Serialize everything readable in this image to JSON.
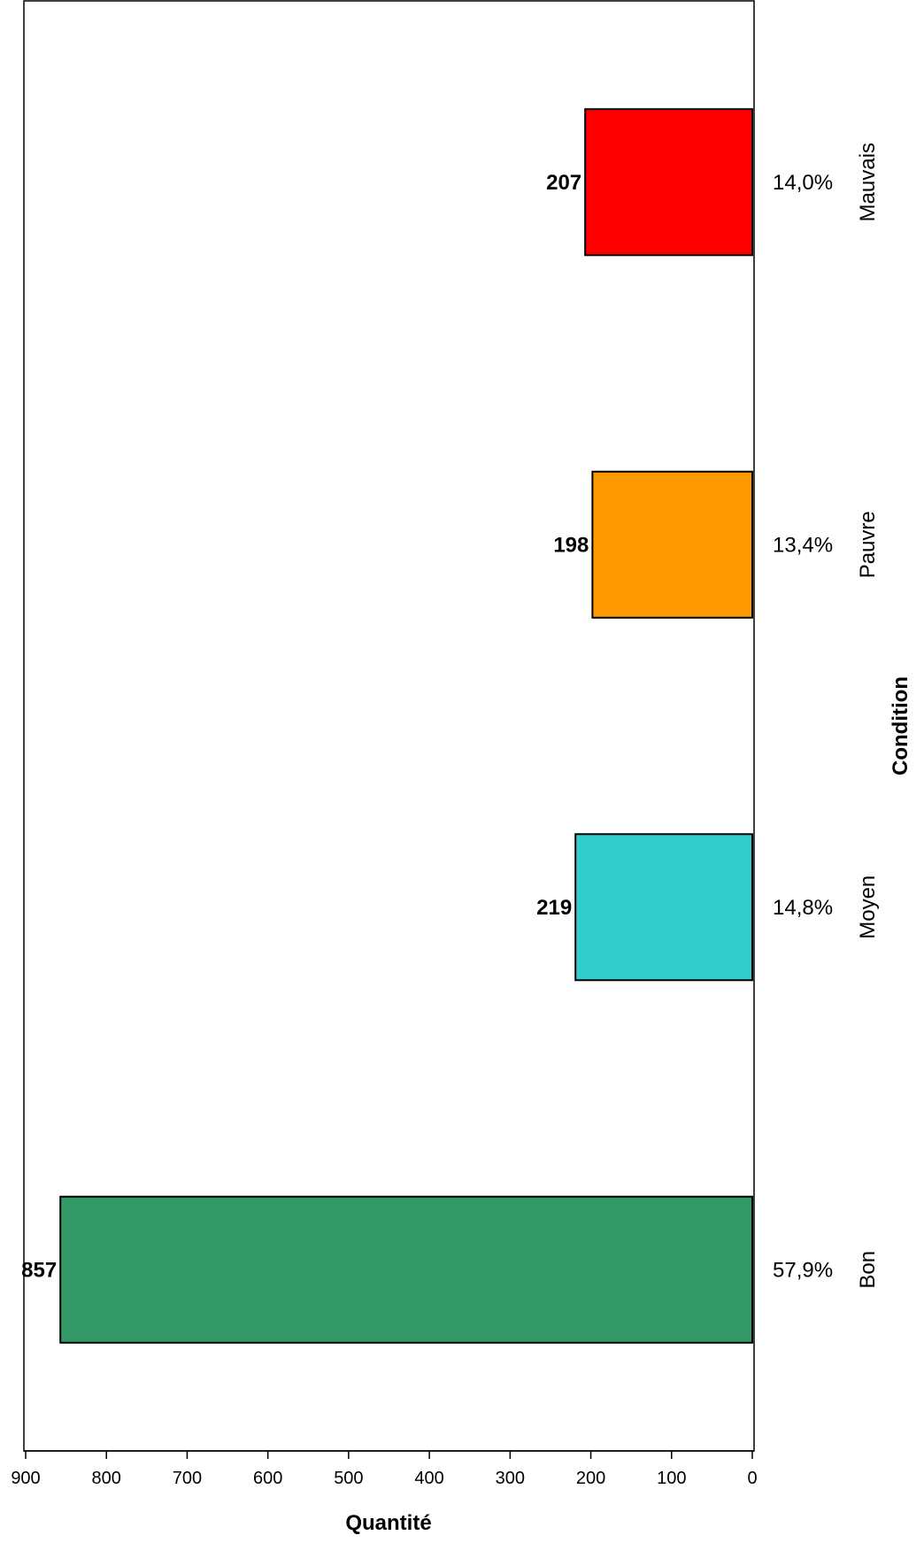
{
  "chart_data": {
    "type": "bar",
    "orientation": "horizontal",
    "xaxis_reversed": true,
    "xlabel": "Quantité",
    "ylabel": "Condition",
    "xlim": [
      0,
      900
    ],
    "xticks": [
      "900",
      "800",
      "700",
      "600",
      "500",
      "400",
      "300",
      "200",
      "100",
      "0"
    ],
    "grid": false,
    "legend": "none",
    "categories": [
      "Mauvais",
      "Pauvre",
      "Moyen",
      "Bon"
    ],
    "values": [
      207,
      198,
      219,
      857
    ],
    "value_labels": [
      "207",
      "198",
      "219",
      "857"
    ],
    "percent_labels": [
      "14,0%",
      "13,4%",
      "14,8%",
      "57,9%"
    ],
    "colors": [
      "#ff0000",
      "#ff9900",
      "#33cccc",
      "#339966"
    ]
  }
}
